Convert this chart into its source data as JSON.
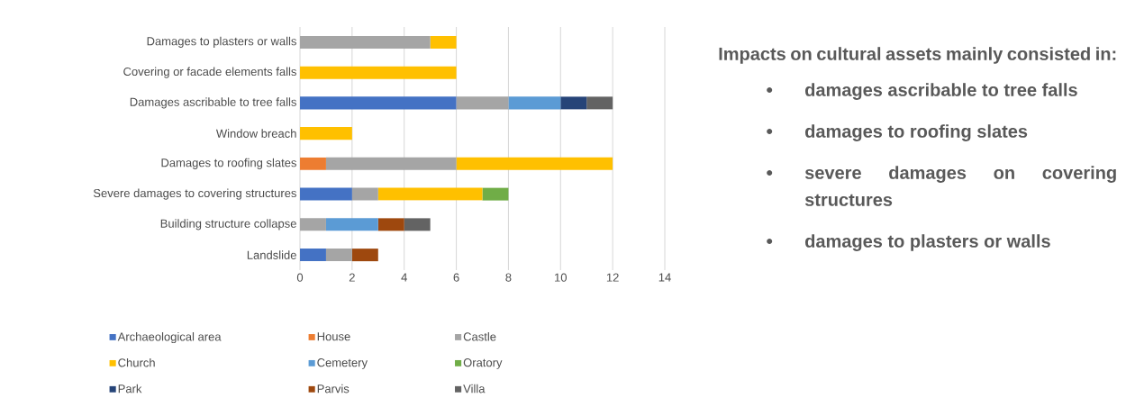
{
  "chart_data": {
    "type": "bar",
    "orientation": "horizontal",
    "stacked": true,
    "categories": [
      "Damages to plasters or walls",
      "Covering or facade elements falls",
      "Damages ascribable to tree falls",
      "Window breach",
      "Damages to roofing slates",
      "Severe damages to covering structures",
      "Building structure collapse",
      "Landslide"
    ],
    "series": [
      {
        "name": "Archaeological area",
        "color": "#4472c4",
        "values": [
          0,
          0,
          6,
          0,
          0,
          2,
          0,
          1
        ]
      },
      {
        "name": "House",
        "color": "#ed7d31",
        "values": [
          0,
          0,
          0,
          0,
          1,
          0,
          0,
          0
        ]
      },
      {
        "name": "Castle",
        "color": "#a5a5a5",
        "values": [
          5,
          0,
          2,
          0,
          5,
          1,
          1,
          1
        ]
      },
      {
        "name": "Church",
        "color": "#ffc000",
        "values": [
          1,
          6,
          0,
          2,
          6,
          4,
          0,
          0
        ]
      },
      {
        "name": "Cemetery",
        "color": "#5b9bd5",
        "values": [
          0,
          0,
          2,
          0,
          0,
          0,
          2,
          0
        ]
      },
      {
        "name": "Oratory",
        "color": "#70ad47",
        "values": [
          0,
          0,
          0,
          0,
          0,
          1,
          0,
          0
        ]
      },
      {
        "name": "Park",
        "color": "#264478",
        "values": [
          0,
          0,
          1,
          0,
          0,
          0,
          0,
          0
        ]
      },
      {
        "name": "Parvis",
        "color": "#9e480e",
        "values": [
          0,
          0,
          0,
          0,
          0,
          0,
          1,
          1
        ]
      },
      {
        "name": "Villa",
        "color": "#636363",
        "values": [
          0,
          0,
          1,
          0,
          0,
          0,
          1,
          0
        ]
      }
    ],
    "xlim": [
      0,
      14
    ],
    "xticks": [
      0,
      2,
      4,
      6,
      8,
      10,
      12,
      14
    ],
    "grid": "x",
    "legend": "bottom",
    "annotations": [
      "Impacts on cultural assets mainly consisted in:",
      "damages ascribable to tree falls",
      "damages to roofing slates",
      "severe damages on covering structures",
      "damages to plasters or walls"
    ]
  }
}
